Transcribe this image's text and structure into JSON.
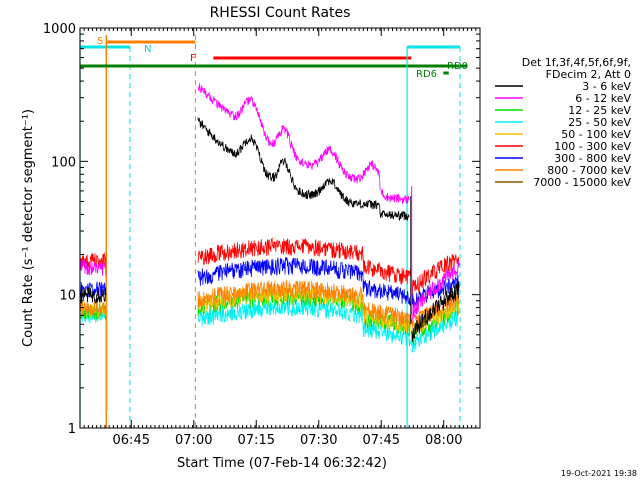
{
  "chart_data": {
    "type": "line",
    "title": "RHESSI Count Rates",
    "xlabel": "Start Time (07-Feb-14 06:32:42)",
    "ylabel": "Count Rate (s⁻¹ detector segment⁻¹)",
    "yscale": "log",
    "ylim": [
      1,
      1000
    ],
    "xlim_minutes": [
      0,
      96
    ],
    "x_ticks": [
      {
        "minute": 12.3,
        "label": "06:45"
      },
      {
        "minute": 27.3,
        "label": "07:00"
      },
      {
        "minute": 42.3,
        "label": "07:15"
      },
      {
        "minute": 57.3,
        "label": "07:30"
      },
      {
        "minute": 72.3,
        "label": "07:45"
      },
      {
        "minute": 87.3,
        "label": "08:00"
      }
    ],
    "y_ticks": [
      {
        "value": 1,
        "label": "1"
      },
      {
        "value": 10,
        "label": "10"
      },
      {
        "value": 100,
        "label": "100"
      },
      {
        "value": 1000,
        "label": "1000"
      }
    ],
    "legend_header": [
      "Det 1f,3f,4f,5f,6f,9f,",
      "FDecim 2, Att 0"
    ],
    "legend_placement": "right",
    "series": [
      {
        "name": "3 - 6 keV",
        "color": "#000000",
        "key": "b3_6"
      },
      {
        "name": "6 - 12 keV",
        "color": "#ff00ff",
        "key": "b6_12"
      },
      {
        "name": "12 - 25 keV",
        "color": "#00e000",
        "key": "b12_25"
      },
      {
        "name": "25 - 50 keV",
        "color": "#00f0f0",
        "key": "b25_50"
      },
      {
        "name": "50 - 100 keV",
        "color": "#f0c000",
        "key": "b50_100"
      },
      {
        "name": "100 - 300 keV",
        "color": "#ff0000",
        "key": "b100_300"
      },
      {
        "name": "300 - 800 keV",
        "color": "#0000ff",
        "key": "b300_800"
      },
      {
        "name": "800 - 7000 keV",
        "color": "#ff8000",
        "key": "b800_7000"
      },
      {
        "name": "7000 - 15000 keV",
        "color": "#8b5a00",
        "key": "b7000_15000"
      }
    ],
    "flag_labels": {
      "s": "S",
      "n": "N",
      "f": "F",
      "rd0": "RD0",
      "rd6": "RD6"
    },
    "timestamp": "19-Oct-2021 19:38"
  }
}
